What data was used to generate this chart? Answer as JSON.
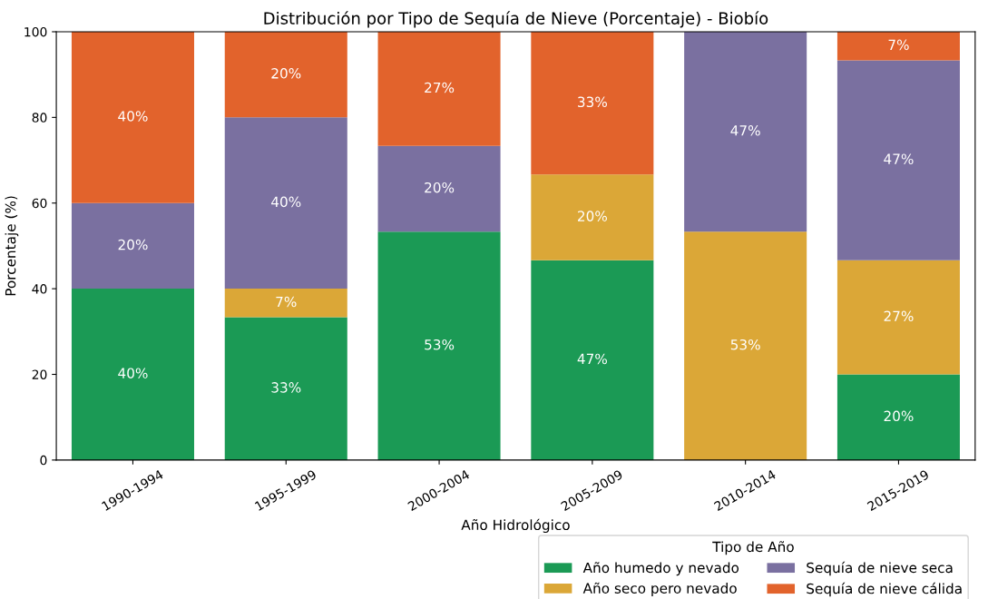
{
  "chart_data": {
    "type": "bar",
    "stacked": true,
    "title": "Distribución por Tipo de Sequía de Nieve (Porcentaje) - Biobío",
    "xlabel": "Año Hidrológico",
    "ylabel": "Porcentaje (%)",
    "legend_title": "Tipo de Año",
    "legend": "bottom right",
    "grid": false,
    "categories": [
      "1990-1994",
      "1995-1999",
      "2000-2004",
      "2005-2009",
      "2010-2014",
      "2015-2019"
    ],
    "ylim": [
      0,
      100
    ],
    "yticks": [
      0,
      20,
      40,
      60,
      80,
      100
    ],
    "series": [
      {
        "name": "Año humedo y nevado",
        "color": "#1b9a55",
        "values": [
          40,
          33.33,
          53.33,
          46.67,
          0,
          20
        ],
        "value_labels": [
          "40%",
          "33%",
          "53%",
          "47%",
          null,
          "20%"
        ]
      },
      {
        "name": "Año seco pero nevado",
        "color": "#dba737",
        "values": [
          0,
          6.67,
          0,
          20,
          53.33,
          26.67
        ],
        "value_labels": [
          null,
          "7%",
          null,
          "20%",
          "53%",
          "27%"
        ]
      },
      {
        "name": "Sequía de nieve seca",
        "color": "#7a70a0",
        "values": [
          20,
          40,
          20,
          0,
          46.67,
          46.67
        ],
        "value_labels": [
          "20%",
          "40%",
          "20%",
          null,
          "47%",
          "47%"
        ]
      },
      {
        "name": "Sequía de nieve cálida",
        "color": "#e2632c",
        "values": [
          40,
          20,
          26.67,
          33.33,
          0,
          6.67
        ],
        "value_labels": [
          "40%",
          "20%",
          "27%",
          "33%",
          null,
          "7%"
        ]
      }
    ]
  }
}
